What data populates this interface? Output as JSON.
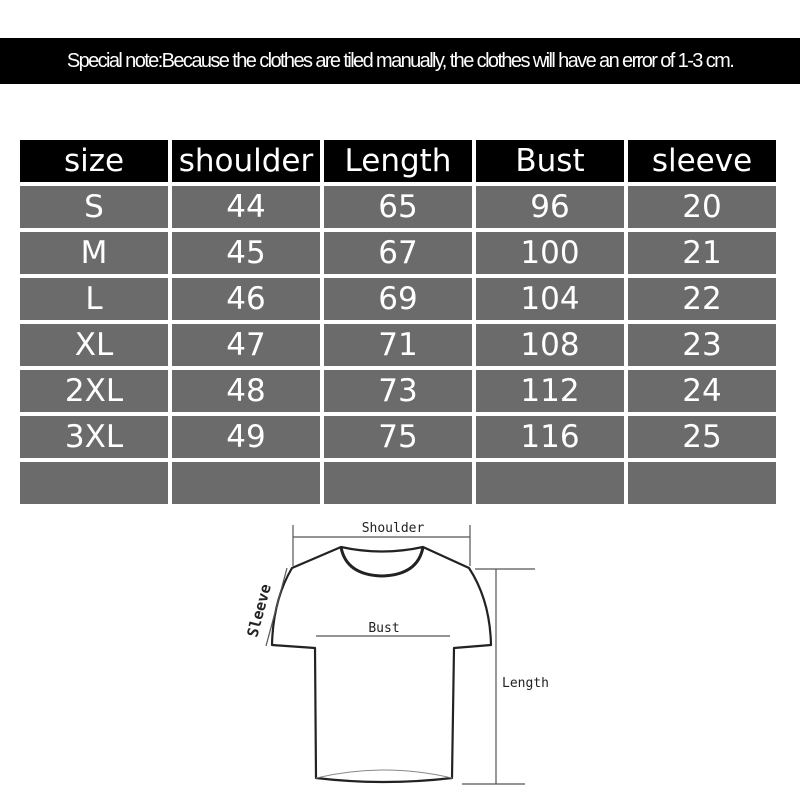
{
  "note": "Special note:Because the clothes are tiled manually, the clothes will have an error of 1-3 cm.",
  "table": {
    "headers": [
      "size",
      "shoulder",
      "Length",
      "Bust",
      "sleeve"
    ],
    "rows": [
      [
        "S",
        "44",
        "65",
        "96",
        "20"
      ],
      [
        "M",
        "45",
        "67",
        "100",
        "21"
      ],
      [
        "L",
        "46",
        "69",
        "104",
        "22"
      ],
      [
        "XL",
        "47",
        "71",
        "108",
        "23"
      ],
      [
        "2XL",
        "48",
        "73",
        "112",
        "24"
      ],
      [
        "3XL",
        "49",
        "75",
        "116",
        "25"
      ]
    ]
  },
  "diagram": {
    "shoulder_label": "Shoulder",
    "bust_label": "Bust",
    "length_label": "Length",
    "sleeve_label": "Sleeve"
  },
  "colors": {
    "header_bg": "#000000",
    "cell_bg": "#6b6b6b",
    "text": "#ffffff"
  }
}
